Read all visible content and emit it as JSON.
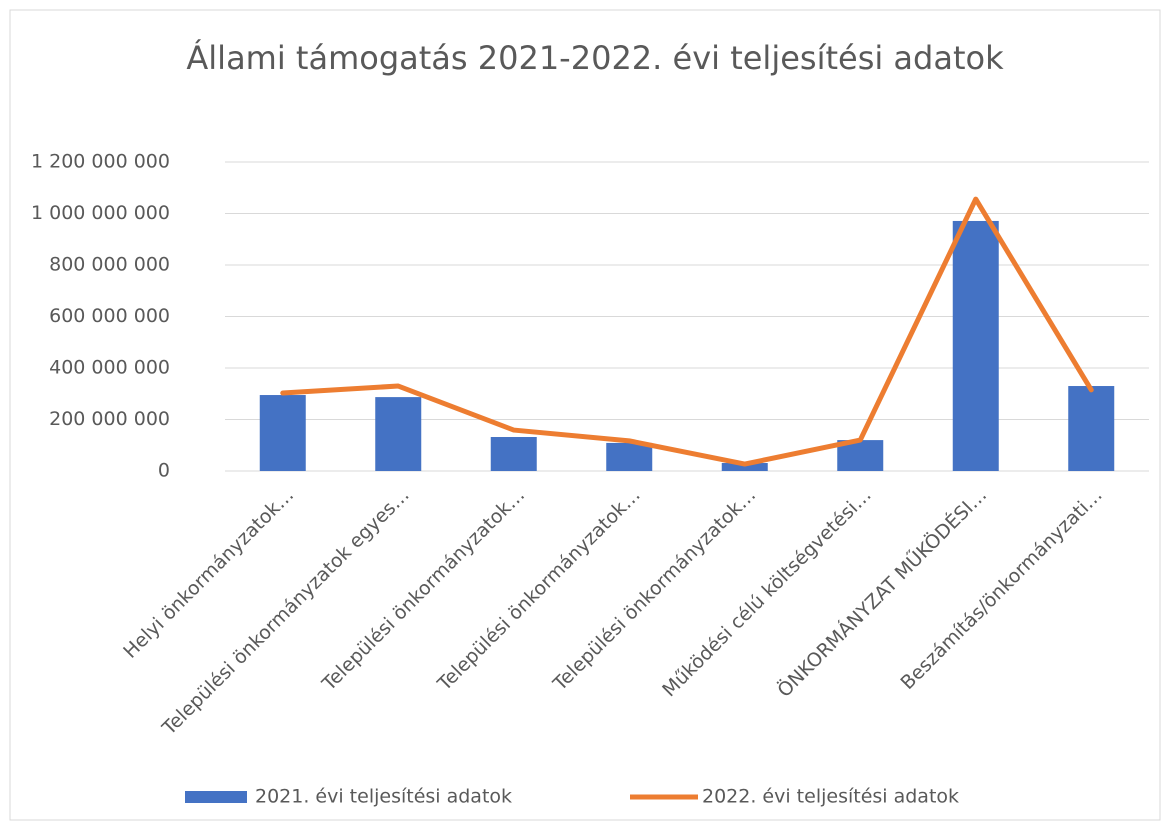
{
  "chart_data": {
    "type": "combo",
    "title": "Állami támogatás 2021-2022. évi teljesítési adatok",
    "categories": [
      "Helyi önkormányzatok…",
      "Települési önkormányzatok egyes…",
      "Települési önkormányzatok…",
      "Települési önkormányzatok…",
      "Települési önkormányzatok…",
      "Működési célú költségvetési…",
      "ÖNKORMÁNYZAT MŰKÖDÉSI…",
      "Beszámítás/önkormányzati…"
    ],
    "series": [
      {
        "name": "2021. évi teljesítési adatok",
        "type": "bar",
        "color": "#4472c4",
        "values": [
          295000000,
          287000000,
          132000000,
          109000000,
          31000000,
          120000000,
          971000000,
          330000000
        ]
      },
      {
        "name": "2022. évi teljesítési adatok",
        "type": "line",
        "color": "#ed7d31",
        "values": [
          303000000,
          330000000,
          159000000,
          117000000,
          27000000,
          120000000,
          1056000000,
          315000000
        ]
      }
    ],
    "ylim": [
      0,
      1200000000
    ],
    "yticks": [
      0,
      {
        "value": 200000000,
        "label": "200 000 000"
      },
      {
        "value": 400000000,
        "label": "400 000 000"
      },
      {
        "value": 600000000,
        "label": "600 000 000"
      },
      {
        "value": 800000000,
        "label": "800 000 000"
      },
      {
        "value": 1000000000,
        "label": "1 000 000 000"
      },
      {
        "value": 1200000000,
        "label": "1 200 000 000"
      }
    ],
    "grid": true,
    "legend": "bottom"
  }
}
